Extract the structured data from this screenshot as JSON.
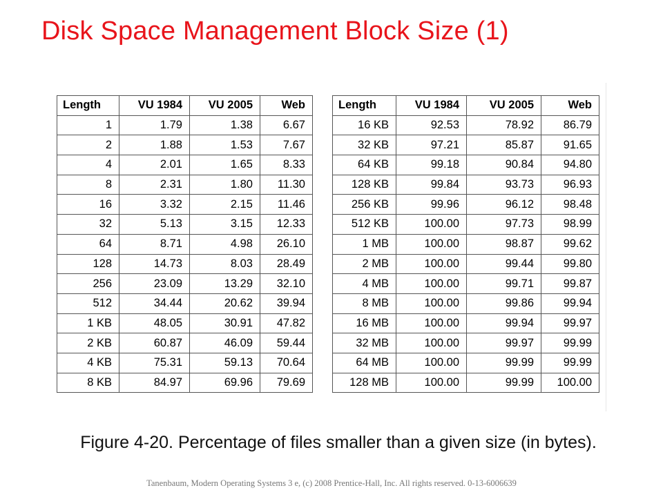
{
  "slide": {
    "title": "Disk Space Management Block Size (1)",
    "caption": "Figure 4-20. Percentage of files smaller than a given size (in bytes).",
    "footer": "Tanenbaum, Modern Operating Systems 3 e, (c) 2008 Prentice-Hall, Inc. All rights reserved. 0-13-6006639"
  },
  "tables": {
    "headers": [
      "Length",
      "VU 1984",
      "VU 2005",
      "Web"
    ],
    "left": [
      [
        "1",
        "1.79",
        "1.38",
        "6.67"
      ],
      [
        "2",
        "1.88",
        "1.53",
        "7.67"
      ],
      [
        "4",
        "2.01",
        "1.65",
        "8.33"
      ],
      [
        "8",
        "2.31",
        "1.80",
        "11.30"
      ],
      [
        "16",
        "3.32",
        "2.15",
        "11.46"
      ],
      [
        "32",
        "5.13",
        "3.15",
        "12.33"
      ],
      [
        "64",
        "8.71",
        "4.98",
        "26.10"
      ],
      [
        "128",
        "14.73",
        "8.03",
        "28.49"
      ],
      [
        "256",
        "23.09",
        "13.29",
        "32.10"
      ],
      [
        "512",
        "34.44",
        "20.62",
        "39.94"
      ],
      [
        "1 KB",
        "48.05",
        "30.91",
        "47.82"
      ],
      [
        "2 KB",
        "60.87",
        "46.09",
        "59.44"
      ],
      [
        "4 KB",
        "75.31",
        "59.13",
        "70.64"
      ],
      [
        "8 KB",
        "84.97",
        "69.96",
        "79.69"
      ]
    ],
    "right": [
      [
        "16 KB",
        "92.53",
        "78.92",
        "86.79"
      ],
      [
        "32 KB",
        "97.21",
        "85.87",
        "91.65"
      ],
      [
        "64 KB",
        "99.18",
        "90.84",
        "94.80"
      ],
      [
        "128 KB",
        "99.84",
        "93.73",
        "96.93"
      ],
      [
        "256 KB",
        "99.96",
        "96.12",
        "98.48"
      ],
      [
        "512 KB",
        "100.00",
        "97.73",
        "98.99"
      ],
      [
        "1 MB",
        "100.00",
        "98.87",
        "99.62"
      ],
      [
        "2 MB",
        "100.00",
        "99.44",
        "99.80"
      ],
      [
        "4 MB",
        "100.00",
        "99.71",
        "99.87"
      ],
      [
        "8 MB",
        "100.00",
        "99.86",
        "99.94"
      ],
      [
        "16 MB",
        "100.00",
        "99.94",
        "99.97"
      ],
      [
        "32 MB",
        "100.00",
        "99.97",
        "99.99"
      ],
      [
        "64 MB",
        "100.00",
        "99.99",
        "99.99"
      ],
      [
        "128 MB",
        "100.00",
        "99.99",
        "100.00"
      ]
    ]
  }
}
